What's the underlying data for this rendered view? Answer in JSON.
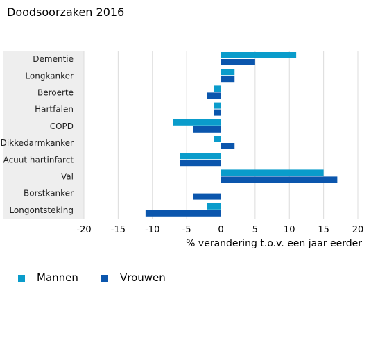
{
  "chart_data": {
    "type": "bar",
    "orientation": "horizontal",
    "title": "Doodsoorzaken 2016",
    "xlabel": "% verandering t.o.v. een jaar eerder",
    "ylabel": "",
    "xlim": [
      -20,
      20
    ],
    "xticks": [
      -20,
      -15,
      -10,
      -5,
      0,
      5,
      10,
      15,
      20
    ],
    "xtick_labels": [
      "-20",
      "-15",
      "-10",
      "-5",
      "0",
      "5",
      "10",
      "15",
      "20"
    ],
    "grid": true,
    "legend_position": "bottom-left",
    "categories": [
      "Dementie",
      "Longkanker",
      "Beroerte",
      "Hartfalen",
      "COPD",
      "Dikkedarmkanker",
      "Acuut hartinfarct",
      "Val",
      "Borstkanker",
      "Longontsteking"
    ],
    "series": [
      {
        "name": "Mannen",
        "color": "#0a9ccb",
        "values": [
          11,
          2,
          -1,
          -1,
          -7,
          -1,
          -6,
          15,
          null,
          -2
        ]
      },
      {
        "name": "Vrouwen",
        "color": "#0b56ad",
        "values": [
          5,
          2,
          -2,
          -1,
          -4,
          2,
          -6,
          17,
          -4,
          -11
        ]
      }
    ]
  },
  "colors": {
    "label_band": "#eeeeee",
    "gridline": "#dcdcdc",
    "zero_line": "#bfbfbf"
  }
}
